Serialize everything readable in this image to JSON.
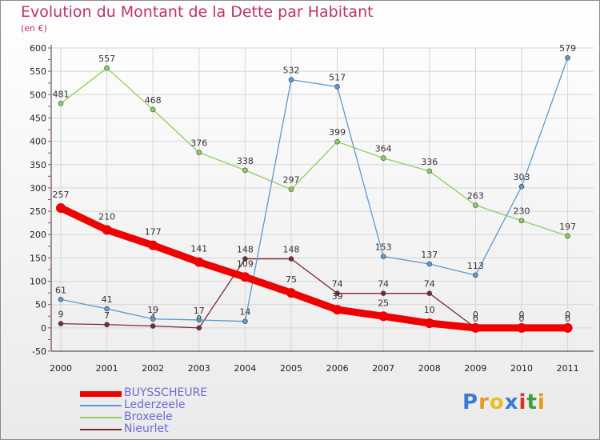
{
  "chart_data": {
    "type": "line",
    "title": "Evolution du Montant de la Dette par Habitant",
    "subtitle": "(en €)",
    "categories": [
      "2000",
      "2001",
      "2002",
      "2003",
      "2004",
      "2005",
      "2006",
      "2007",
      "2008",
      "2009",
      "2010",
      "2011"
    ],
    "yticks": [
      "-50",
      "0",
      "50",
      "100",
      "150",
      "200",
      "250",
      "300",
      "350",
      "400",
      "450",
      "500",
      "550",
      "600"
    ],
    "ylim": [
      -50,
      600
    ],
    "grid": true,
    "legend_position": "bottom-left",
    "series": [
      {
        "name": "Nieurlet",
        "color": "#7a2a35",
        "values": [
          9,
          7,
          4,
          0,
          148,
          148,
          74,
          74,
          74,
          0,
          0,
          0
        ],
        "labels": [
          "9",
          "7",
          "4",
          "0",
          "148",
          "148",
          "74",
          "74",
          "74",
          "0",
          "0",
          "0"
        ]
      },
      {
        "name": "Broxeele",
        "color": "#88d060",
        "values": [
          481,
          557,
          468,
          376,
          338,
          297,
          399,
          364,
          336,
          263,
          230,
          197
        ],
        "labels": [
          "481",
          "557",
          "468",
          "376",
          "338",
          "297",
          "399",
          "364",
          "336",
          "263",
          "230",
          "197"
        ]
      },
      {
        "name": "Lederzeele",
        "color": "#5a9ad0",
        "values": [
          61,
          41,
          19,
          17,
          14,
          532,
          517,
          153,
          137,
          113,
          303,
          579
        ],
        "labels": [
          "61",
          "41",
          "19",
          "17",
          "14",
          "532",
          "517",
          "153",
          "137",
          "113",
          "303",
          "579"
        ]
      },
      {
        "name": "BUYSSCHEURE",
        "color": "#ee0000",
        "values": [
          257,
          210,
          177,
          141,
          109,
          75,
          39,
          25,
          10,
          0,
          0,
          0
        ],
        "labels": [
          "257",
          "210",
          "177",
          "141",
          "109",
          "75",
          "39",
          "25",
          "10",
          "0",
          "0",
          "0"
        ]
      }
    ]
  },
  "legend": {
    "items": [
      {
        "name": "BUYSSCHEURE",
        "color": "#ee0000"
      },
      {
        "name": "Lederzeele",
        "color": "#5a9ad0"
      },
      {
        "name": "Broxeele",
        "color": "#88d060"
      },
      {
        "name": "Nieurlet",
        "color": "#7a2a35"
      }
    ]
  },
  "logo": {
    "text": "Proxiti",
    "letter_colors": [
      "#3a7ad8",
      "#e89a20",
      "#e8c020",
      "#3a7ad8",
      "#e03020",
      "#3aa040",
      "#e89a20"
    ]
  }
}
